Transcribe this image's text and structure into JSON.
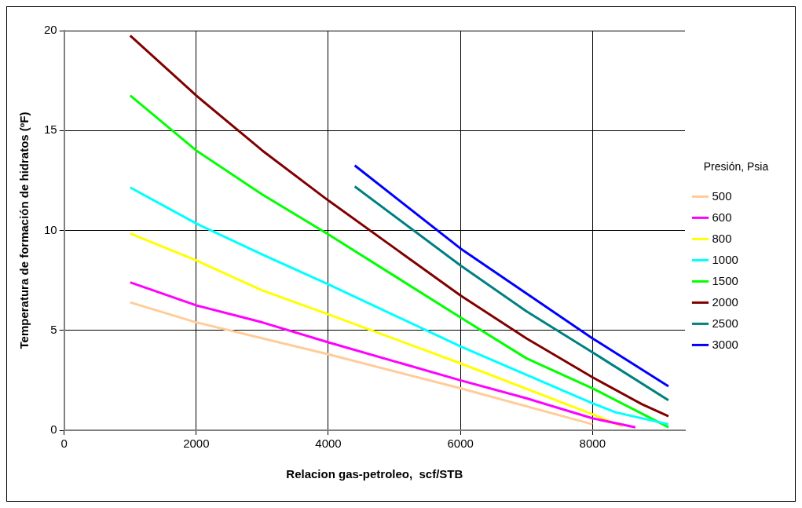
{
  "chart_data": {
    "type": "line",
    "xlabel": "Relacion gas-petroleo,  scf/STB",
    "ylabel": "Temperatura de formación de hidratos (ºF)",
    "legend_title": "Presión, Psia",
    "xlim": [
      0,
      9400
    ],
    "xticks": [
      0,
      2000,
      4000,
      6000,
      8000
    ],
    "ylim": [
      0,
      20
    ],
    "yticks": [
      0,
      5,
      10,
      15,
      20
    ],
    "grid": true,
    "legend": "right",
    "marker": "none",
    "line_style": "solid",
    "series": [
      {
        "name": "500",
        "color": "#ffcc99",
        "x": [
          1000,
          2000,
          4000,
          6000,
          8000
        ],
        "values": [
          6.4,
          5.4,
          3.8,
          2.1,
          0.3
        ]
      },
      {
        "name": "600",
        "color": "#ff00ff",
        "x": [
          1000,
          2000,
          3000,
          4000,
          6000,
          7000,
          8000,
          8650
        ],
        "values": [
          7.4,
          6.25,
          5.4,
          4.4,
          2.5,
          1.6,
          0.6,
          0.15
        ]
      },
      {
        "name": "800",
        "color": "#ffff00",
        "x": [
          1000,
          2000,
          3000,
          4000,
          6000,
          8000,
          8450
        ],
        "values": [
          9.85,
          8.5,
          7.0,
          5.8,
          3.35,
          0.8,
          0.2
        ]
      },
      {
        "name": "1000",
        "color": "#00ffff",
        "x": [
          1000,
          2000,
          3000,
          4000,
          6000,
          8000,
          8350,
          9150
        ],
        "values": [
          12.15,
          10.35,
          8.8,
          7.3,
          4.2,
          1.35,
          0.9,
          0.3
        ]
      },
      {
        "name": "1500",
        "color": "#00ff00",
        "x": [
          1000,
          2000,
          3000,
          4000,
          6000,
          7000,
          8000,
          9150
        ],
        "values": [
          16.75,
          14.0,
          11.8,
          9.8,
          5.65,
          3.6,
          2.1,
          0.15
        ]
      },
      {
        "name": "2000",
        "color": "#800000",
        "x": [
          1000,
          2000,
          3000,
          4000,
          6000,
          7000,
          8000,
          8750,
          9150
        ],
        "values": [
          19.75,
          16.75,
          14.0,
          11.5,
          6.75,
          4.6,
          2.65,
          1.3,
          0.7
        ]
      },
      {
        "name": "2500",
        "color": "#008080",
        "x": [
          4400,
          6000,
          7000,
          8000,
          9150
        ],
        "values": [
          12.2,
          8.25,
          5.95,
          3.9,
          1.5
        ]
      },
      {
        "name": "3000",
        "color": "#0000ff",
        "x": [
          4400,
          6000,
          8000,
          9150
        ],
        "values": [
          13.25,
          9.1,
          4.6,
          2.2
        ]
      }
    ]
  }
}
